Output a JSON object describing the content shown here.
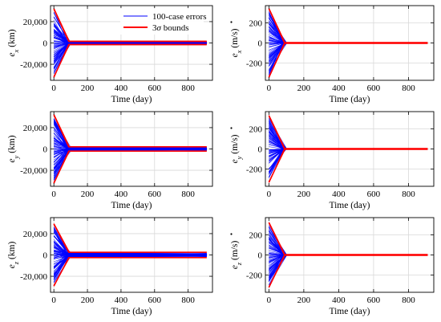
{
  "chart_data": [
    {
      "type": "line",
      "ylabel": "e_x (km)",
      "ylabel_main": "e",
      "ylabel_sub": "x",
      "ylabel_unit": " (km)",
      "ylabel_dot": false,
      "xlabel": "Time (day)",
      "xlim": [
        -20,
        945
      ],
      "ylim": [
        -35000,
        35000
      ],
      "xticks": [
        0,
        200,
        400,
        600,
        800
      ],
      "yticks": [
        20000,
        0,
        -20000
      ],
      "ytick_labels": [
        "20,000",
        "0",
        "-20,000"
      ],
      "grid": true,
      "peak": 32000,
      "settle_day": 90,
      "floor": 1500,
      "legend": {
        "placement": "top-center",
        "entries": [
          {
            "label": "100-case errors",
            "color": "#0000ff"
          },
          {
            "label": "3σ bounds",
            "label_prefix": "3",
            "label_sigma": "σ",
            "label_suffix": " bounds",
            "color": "#ff0000"
          }
        ]
      },
      "series": [
        {
          "name": "3σ bounds",
          "color": "#ff0000",
          "x": [
            0,
            90,
            910
          ],
          "upper": [
            32000,
            1500,
            1500
          ],
          "lower": [
            -32000,
            -1500,
            -1500
          ]
        },
        {
          "name": "100-case errors",
          "color": "#0000ff",
          "cases": 100,
          "x": [
            0,
            90,
            910
          ],
          "envelope": [
            30000,
            1200,
            1000
          ]
        }
      ]
    },
    {
      "type": "line",
      "ylabel": "ė_x (m/s)",
      "ylabel_main": "e",
      "ylabel_sub": "x",
      "ylabel_unit": " (m/s)",
      "ylabel_dot": true,
      "xlabel": "Time (day)",
      "xlim": [
        -20,
        945
      ],
      "ylim": [
        -370,
        370
      ],
      "xticks": [
        0,
        200,
        400,
        600,
        800
      ],
      "yticks": [
        200,
        0,
        -200
      ],
      "ytick_labels": [
        "200",
        "0",
        "-200"
      ],
      "grid": true,
      "peak": 340,
      "settle_day": 90,
      "floor": 3,
      "series": [
        {
          "name": "3σ bounds",
          "color": "#ff0000",
          "x": [
            0,
            90,
            910
          ],
          "upper": [
            340,
            3,
            3
          ],
          "lower": [
            -340,
            -3,
            -3
          ]
        },
        {
          "name": "100-case errors",
          "color": "#0000ff",
          "cases": 100,
          "x": [
            0,
            90,
            910
          ],
          "envelope": [
            320,
            2,
            1
          ]
        }
      ]
    },
    {
      "type": "line",
      "ylabel": "e_y (km)",
      "ylabel_main": "e",
      "ylabel_sub": "y",
      "ylabel_unit": " (km)",
      "ylabel_dot": false,
      "xlabel": "Time (day)",
      "xlim": [
        -20,
        945
      ],
      "ylim": [
        -35000,
        35000
      ],
      "xticks": [
        0,
        200,
        400,
        600,
        800
      ],
      "yticks": [
        20000,
        0,
        -20000
      ],
      "ytick_labels": [
        "20,000",
        "0",
        "-20,000"
      ],
      "grid": true,
      "peak": 32000,
      "settle_day": 90,
      "floor": 2000,
      "series": [
        {
          "name": "3σ bounds",
          "color": "#ff0000",
          "x": [
            0,
            90,
            910
          ],
          "upper": [
            32000,
            2000,
            2000
          ],
          "lower": [
            -32000,
            -2000,
            -2000
          ]
        },
        {
          "name": "100-case errors",
          "color": "#0000ff",
          "cases": 100,
          "x": [
            0,
            90,
            910
          ],
          "envelope": [
            30000,
            1600,
            1200
          ]
        }
      ]
    },
    {
      "type": "line",
      "ylabel": "ė_y (m/s)",
      "ylabel_main": "e",
      "ylabel_sub": "y",
      "ylabel_unit": " (m/s)",
      "ylabel_dot": true,
      "xlabel": "Time (day)",
      "xlim": [
        -20,
        945
      ],
      "ylim": [
        -370,
        370
      ],
      "xticks": [
        0,
        200,
        400,
        600,
        800
      ],
      "yticks": [
        200,
        0,
        -200
      ],
      "ytick_labels": [
        "200",
        "0",
        "-200"
      ],
      "grid": true,
      "peak": 330,
      "settle_day": 90,
      "floor": 3,
      "series": [
        {
          "name": "3σ bounds",
          "color": "#ff0000",
          "x": [
            0,
            90,
            910
          ],
          "upper": [
            330,
            3,
            3
          ],
          "lower": [
            -330,
            -3,
            -3
          ]
        },
        {
          "name": "100-case errors",
          "color": "#0000ff",
          "cases": 100,
          "x": [
            0,
            90,
            910
          ],
          "envelope": [
            310,
            2,
            1
          ]
        }
      ]
    },
    {
      "type": "line",
      "ylabel": "e_z (km)",
      "ylabel_main": "e",
      "ylabel_sub": "z",
      "ylabel_unit": " (km)",
      "ylabel_dot": false,
      "xlabel": "Time (day)",
      "xlim": [
        -20,
        945
      ],
      "ylim": [
        -35000,
        35000
      ],
      "xticks": [
        0,
        200,
        400,
        600,
        800
      ],
      "yticks": [
        20000,
        0,
        -20000
      ],
      "ytick_labels": [
        "20,000",
        "0",
        "-20,000"
      ],
      "grid": true,
      "peak": 29000,
      "settle_day": 90,
      "floor": 2500,
      "series": [
        {
          "name": "3σ bounds",
          "color": "#ff0000",
          "x": [
            0,
            90,
            910
          ],
          "upper": [
            29000,
            2500,
            2500
          ],
          "lower": [
            -29000,
            -2500,
            -2500
          ]
        },
        {
          "name": "100-case errors",
          "color": "#0000ff",
          "cases": 100,
          "x": [
            0,
            90,
            910
          ],
          "envelope": [
            27000,
            2000,
            1500
          ]
        }
      ]
    },
    {
      "type": "line",
      "ylabel": "ė_z (m/s)",
      "ylabel_main": "e",
      "ylabel_sub": "z",
      "ylabel_unit": " (m/s)",
      "ylabel_dot": true,
      "xlabel": "Time (day)",
      "xlim": [
        -20,
        945
      ],
      "ylim": [
        -370,
        370
      ],
      "xticks": [
        0,
        200,
        400,
        600,
        800
      ],
      "yticks": [
        200,
        0,
        -200
      ],
      "ytick_labels": [
        "200",
        "0",
        "-200"
      ],
      "grid": true,
      "peak": 320,
      "settle_day": 90,
      "floor": 3,
      "series": [
        {
          "name": "3σ bounds",
          "color": "#ff0000",
          "x": [
            0,
            90,
            910
          ],
          "upper": [
            320,
            3,
            3
          ],
          "lower": [
            -320,
            -3,
            -3
          ]
        },
        {
          "name": "100-case errors",
          "color": "#0000ff",
          "cases": 100,
          "x": [
            0,
            90,
            910
          ],
          "envelope": [
            300,
            2,
            1
          ]
        }
      ]
    }
  ]
}
